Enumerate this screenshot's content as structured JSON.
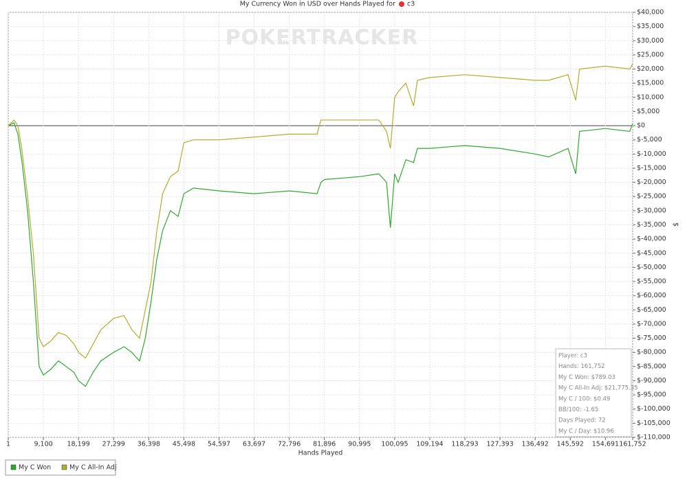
{
  "chart_data": {
    "type": "line",
    "title": "My Currency Won in USD over Hands Played for",
    "title_player": "c3",
    "watermark": "POKERTRACKER",
    "x_label": "Hands Played",
    "y_label": "$",
    "grid": true,
    "xlim": [
      1,
      161752
    ],
    "ylim": [
      -110000,
      40000
    ],
    "xticks": [
      1,
      {
        "value": 9100,
        "label": "9,100"
      },
      {
        "value": 18199,
        "label": "18,199"
      },
      {
        "value": 27299,
        "label": "27,299"
      },
      {
        "value": 36398,
        "label": "36,398"
      },
      {
        "value": 45498,
        "label": "45,498"
      },
      {
        "value": 54597,
        "label": "54,597"
      },
      {
        "value": 63697,
        "label": "63,697"
      },
      {
        "value": 72796,
        "label": "72,796"
      },
      {
        "value": 81896,
        "label": "81,896"
      },
      {
        "value": 90995,
        "label": "90,995"
      },
      {
        "value": 100095,
        "label": "100,095"
      },
      {
        "value": 109194,
        "label": "109,194"
      },
      {
        "value": 118293,
        "label": "118,293"
      },
      {
        "value": 127393,
        "label": "127,393"
      },
      {
        "value": 136492,
        "label": "136,492"
      },
      {
        "value": 145592,
        "label": "145,592"
      },
      {
        "value": 154691,
        "label": "154,691"
      },
      {
        "value": 161752,
        "label": "161,752"
      }
    ],
    "yticks": [
      {
        "value": 40000,
        "label": "$40,000"
      },
      {
        "value": 35000,
        "label": "$35,000"
      },
      {
        "value": 30000,
        "label": "$30,000"
      },
      {
        "value": 25000,
        "label": "$25,000"
      },
      {
        "value": 20000,
        "label": "$20,000"
      },
      {
        "value": 15000,
        "label": "$15,000"
      },
      {
        "value": 10000,
        "label": "$10,000"
      },
      {
        "value": 5000,
        "label": "$5,000"
      },
      {
        "value": 0,
        "label": "$0"
      },
      {
        "value": -5000,
        "label": "$-5,000"
      },
      {
        "value": -10000,
        "label": "$-10,000"
      },
      {
        "value": -15000,
        "label": "$-15,000"
      },
      {
        "value": -20000,
        "label": "$-20,000"
      },
      {
        "value": -25000,
        "label": "$-25,000"
      },
      {
        "value": -30000,
        "label": "$-30,000"
      },
      {
        "value": -35000,
        "label": "$-35,000"
      },
      {
        "value": -40000,
        "label": "$-40,000"
      },
      {
        "value": -45000,
        "label": "$-45,000"
      },
      {
        "value": -50000,
        "label": "$-50,000"
      },
      {
        "value": -55000,
        "label": "$-55,000"
      },
      {
        "value": -60000,
        "label": "$-60,000"
      },
      {
        "value": -65000,
        "label": "$-65,000"
      },
      {
        "value": -70000,
        "label": "$-70,000"
      },
      {
        "value": -75000,
        "label": "$-75,000"
      },
      {
        "value": -80000,
        "label": "$-80,000"
      },
      {
        "value": -85000,
        "label": "$-85,000"
      },
      {
        "value": -90000,
        "label": "$-90,000"
      },
      {
        "value": -95000,
        "label": "$-95,000"
      },
      {
        "value": -100000,
        "label": "$-100,000"
      },
      {
        "value": -105000,
        "label": "$-105,000"
      },
      {
        "value": -110000,
        "label": "$-110,000"
      }
    ],
    "x": [
      1,
      1500,
      2500,
      3500,
      5000,
      6500,
      8000,
      9100,
      11000,
      13000,
      15000,
      17000,
      18199,
      20000,
      22000,
      24000,
      27299,
      30000,
      32000,
      34000,
      35500,
      37000,
      38500,
      40000,
      42000,
      44000,
      45498,
      48000,
      54597,
      63697,
      72796,
      80000,
      81000,
      81896,
      90995,
      96000,
      98000,
      99000,
      100095,
      101000,
      103000,
      105000,
      106000,
      109194,
      118293,
      127393,
      136492,
      140000,
      145000,
      147000,
      148000,
      154691,
      161000,
      161752
    ],
    "series": [
      {
        "name": "My C Won",
        "color": "#2ea82e",
        "values": [
          0,
          1000,
          -3000,
          -12000,
          -30000,
          -55000,
          -85000,
          -88000,
          -86000,
          -83000,
          -85000,
          -87000,
          -90000,
          -92000,
          -87000,
          -83000,
          -80000,
          -78000,
          -80000,
          -83000,
          -75000,
          -62000,
          -47000,
          -37000,
          -30000,
          -32000,
          -24000,
          -22000,
          -23000,
          -24000,
          -23000,
          -24000,
          -20000,
          -19000,
          -18000,
          -17000,
          -20000,
          -36000,
          -17000,
          -20000,
          -12000,
          -13000,
          -8000,
          -8000,
          -7000,
          -8000,
          -10000,
          -11000,
          -8000,
          -17000,
          -2000,
          -1000,
          -2000,
          789
        ]
      },
      {
        "name": "My C All-In Adj",
        "color": "#b2ac2c",
        "values": [
          0,
          2000,
          0,
          -8000,
          -25000,
          -45000,
          -75000,
          -78000,
          -76000,
          -73000,
          -74000,
          -77000,
          -80000,
          -82000,
          -77000,
          -72000,
          -68000,
          -67000,
          -72000,
          -75000,
          -65000,
          -55000,
          -37000,
          -24000,
          -18000,
          -16000,
          -6000,
          -5000,
          -5000,
          -4000,
          -3000,
          -3000,
          2000,
          2000,
          2000,
          2000,
          -2000,
          -8000,
          10000,
          12000,
          15000,
          7000,
          16000,
          17000,
          18000,
          17000,
          16000,
          16000,
          18000,
          9000,
          20000,
          21000,
          20000,
          21775
        ]
      }
    ],
    "info_box": [
      "Player: c3",
      "Hands: 161,752",
      "My C Won: $789.03",
      "My C All-In Adj: $21,775.35",
      "My C / 100: $0.49",
      "BB/100: -1.65",
      "Days Played: 72",
      "My C / Day: $10.96"
    ]
  }
}
